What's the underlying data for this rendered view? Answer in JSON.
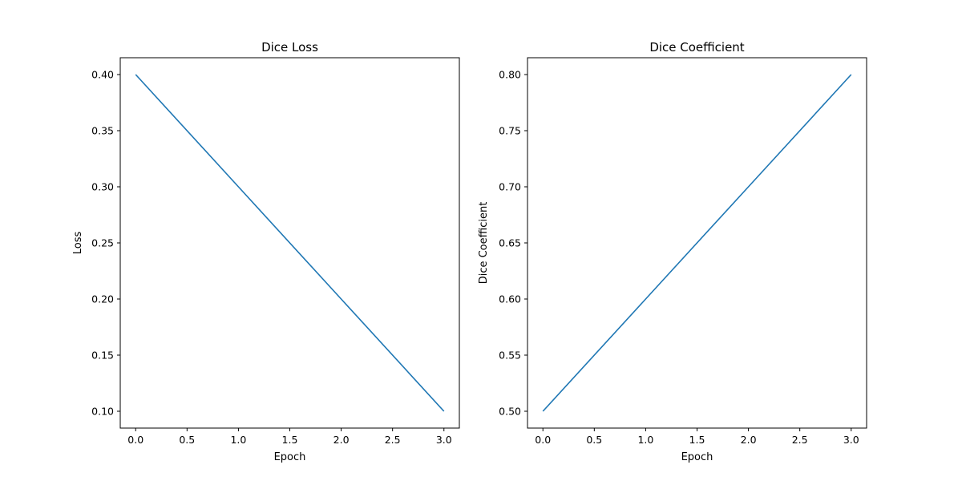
{
  "chart_data": [
    {
      "type": "line",
      "title": "Dice Loss",
      "xlabel": "Epoch",
      "ylabel": "Loss",
      "xlim": [
        -0.15,
        3.15
      ],
      "ylim": [
        0.085,
        0.415
      ],
      "xticks": [
        0.0,
        0.5,
        1.0,
        1.5,
        2.0,
        2.5,
        3.0
      ],
      "xtick_labels": [
        "0.0",
        "0.5",
        "1.0",
        "1.5",
        "2.0",
        "2.5",
        "3.0"
      ],
      "yticks": [
        0.1,
        0.15,
        0.2,
        0.25,
        0.3,
        0.35,
        0.4
      ],
      "ytick_labels": [
        "0.10",
        "0.15",
        "0.20",
        "0.25",
        "0.30",
        "0.35",
        "0.40"
      ],
      "grid": false,
      "series": [
        {
          "x": [
            0,
            1,
            2,
            3
          ],
          "y": [
            0.4,
            0.3,
            0.2,
            0.1
          ],
          "color": "#1f77b4"
        }
      ]
    },
    {
      "type": "line",
      "title": "Dice Coefficient",
      "xlabel": "Epoch",
      "ylabel": "Dice Coefficient",
      "xlim": [
        -0.15,
        3.15
      ],
      "ylim": [
        0.485,
        0.815
      ],
      "xticks": [
        0.0,
        0.5,
        1.0,
        1.5,
        2.0,
        2.5,
        3.0
      ],
      "xtick_labels": [
        "0.0",
        "0.5",
        "1.0",
        "1.5",
        "2.0",
        "2.5",
        "3.0"
      ],
      "yticks": [
        0.5,
        0.55,
        0.6,
        0.65,
        0.7,
        0.75,
        0.8
      ],
      "ytick_labels": [
        "0.50",
        "0.55",
        "0.60",
        "0.65",
        "0.70",
        "0.75",
        "0.80"
      ],
      "grid": false,
      "series": [
        {
          "x": [
            0,
            1,
            2,
            3
          ],
          "y": [
            0.5,
            0.6,
            0.7,
            0.8
          ],
          "color": "#1f77b4"
        }
      ]
    }
  ]
}
